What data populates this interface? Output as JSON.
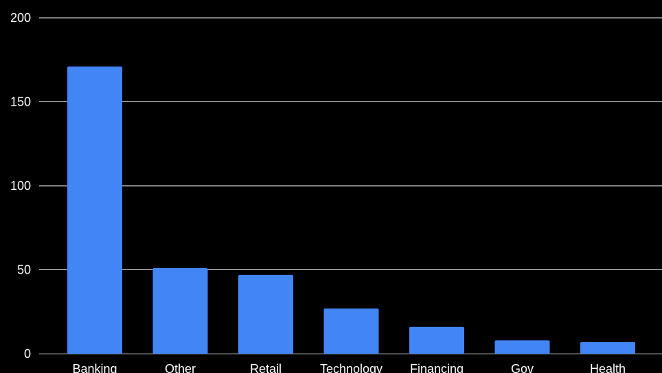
{
  "chart_data": {
    "type": "bar",
    "categories": [
      "Banking",
      "Other",
      "Retail",
      "Technology",
      "Financing",
      "Gov",
      "Health"
    ],
    "values": [
      171,
      51,
      47,
      27,
      16,
      8,
      7
    ],
    "title": "",
    "xlabel": "",
    "ylabel": "",
    "ylim": [
      0,
      200
    ],
    "yticks": [
      0,
      50,
      100,
      150,
      200
    ],
    "grid": true,
    "legend": "none",
    "colors": {
      "bar": "#4285f4",
      "grid": "#ffffff",
      "background": "#000000",
      "text": "#ffffff"
    }
  }
}
